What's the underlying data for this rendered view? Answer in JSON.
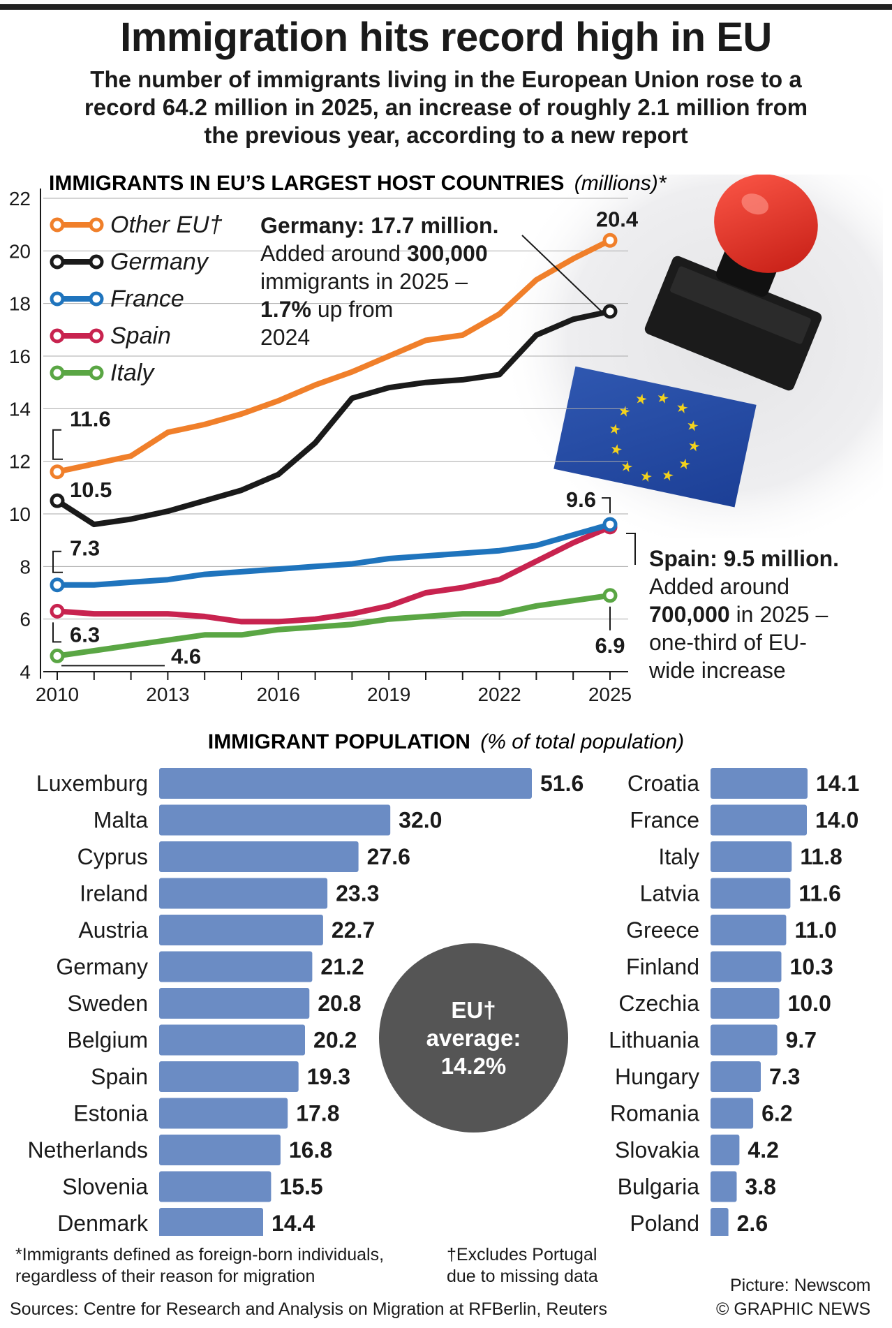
{
  "header": {
    "title": "Immigration hits record high in EU",
    "subtitle": "The number of immigrants living in the European Union rose to a record 64.2 million in 2025, an increase of roughly 2.1 million from the previous year, according to a new report"
  },
  "colors": {
    "other_eu": "#f07f2a",
    "germany": "#1a1a1a",
    "france": "#1f74bd",
    "spain": "#c8234f",
    "italy": "#5aa644",
    "bar": "#6b8cc4",
    "avg_circle": "#555555"
  },
  "annotations": {
    "germany": {
      "head": "Germany: 17.7 million.",
      "pre": "Added around ",
      "amount": "300,000",
      "mid": "immigrants in 2025 –",
      "pct": "1.7%",
      "post": " up from",
      "year": "2024"
    },
    "spain": {
      "head": "Spain: 9.5 million.",
      "l1": "Added around",
      "amount": "700,000",
      "l2": " in 2025 –",
      "l3": "one-third of EU-",
      "l4": "wide increase"
    }
  },
  "avg": {
    "l1": "EU†",
    "l2": "average:",
    "l3": "14.2%"
  },
  "picture": {
    "stamp_icon": "rubber-stamp-eu-flag-icon"
  },
  "footer": {
    "note1_l1": "*Immigrants defined as foreign-born individuals,",
    "note1_l2": "regardless of their reason for migration",
    "note2_l1": "†Excludes Portugal",
    "note2_l2": "due to missing data",
    "picture_credit": "Picture: Newscom",
    "sources": "Sources: Centre for Research and Analysis on Migration at RFBerlin, Reuters",
    "copyright": "© GRAPHIC NEWS"
  },
  "chart_data": [
    {
      "type": "line",
      "title": "IMMIGRANTS IN EU’S LARGEST HOST COUNTRIES",
      "units": "(millions)*",
      "xlabel": "",
      "ylabel": "",
      "x": [
        2010,
        2011,
        2012,
        2013,
        2014,
        2015,
        2016,
        2017,
        2018,
        2019,
        2020,
        2021,
        2022,
        2023,
        2024,
        2025
      ],
      "xticks": [
        "2010",
        "2013",
        "2016",
        "2019",
        "2022",
        "2025"
      ],
      "yticks": [
        "4",
        "6",
        "8",
        "10",
        "12",
        "14",
        "16",
        "18",
        "20",
        "22"
      ],
      "ylim": [
        4,
        22
      ],
      "series": [
        {
          "name": "Other EU†",
          "key": "other_eu",
          "values": [
            11.6,
            11.9,
            12.2,
            13.1,
            13.4,
            13.8,
            14.3,
            14.9,
            15.4,
            16.0,
            16.6,
            16.8,
            17.6,
            18.9,
            19.7,
            20.4
          ],
          "start_label": "11.6",
          "end_label": "20.4"
        },
        {
          "name": "Germany",
          "key": "germany",
          "values": [
            10.5,
            9.6,
            9.8,
            10.1,
            10.5,
            10.9,
            11.5,
            12.7,
            14.4,
            14.8,
            15.0,
            15.1,
            15.3,
            16.8,
            17.4,
            17.7
          ],
          "start_label": "10.5",
          "end_label": ""
        },
        {
          "name": "France",
          "key": "france",
          "values": [
            7.3,
            7.3,
            7.4,
            7.5,
            7.7,
            7.8,
            7.9,
            8.0,
            8.1,
            8.3,
            8.4,
            8.5,
            8.6,
            8.8,
            9.2,
            9.6
          ],
          "start_label": "7.3",
          "end_label": "9.6"
        },
        {
          "name": "Spain",
          "key": "spain",
          "values": [
            6.3,
            6.2,
            6.2,
            6.2,
            6.1,
            5.9,
            5.9,
            6.0,
            6.2,
            6.5,
            7.0,
            7.2,
            7.5,
            8.2,
            8.9,
            9.5
          ],
          "start_label": "6.3",
          "end_label": ""
        },
        {
          "name": "Italy",
          "key": "italy",
          "values": [
            4.6,
            4.8,
            5.0,
            5.2,
            5.4,
            5.4,
            5.6,
            5.7,
            5.8,
            6.0,
            6.1,
            6.2,
            6.2,
            6.5,
            6.7,
            6.9
          ],
          "start_label": "4.6",
          "end_label": "6.9"
        }
      ]
    },
    {
      "type": "bar",
      "orientation": "horizontal",
      "title": "IMMIGRANT POPULATION",
      "units": "(% of total population)",
      "categories": [
        "Luxemburg",
        "Malta",
        "Cyprus",
        "Ireland",
        "Austria",
        "Germany",
        "Sweden",
        "Belgium",
        "Spain",
        "Estonia",
        "Netherlands",
        "Slovenia",
        "Denmark",
        "Croatia",
        "France",
        "Italy",
        "Latvia",
        "Greece",
        "Finland",
        "Czechia",
        "Lithuania",
        "Hungary",
        "Romania",
        "Slovakia",
        "Bulgaria",
        "Poland"
      ],
      "values": [
        51.6,
        32.0,
        27.6,
        23.3,
        22.7,
        21.2,
        20.8,
        20.2,
        19.3,
        17.8,
        16.8,
        15.5,
        14.4,
        14.1,
        14.0,
        11.8,
        11.6,
        11.0,
        10.3,
        10.0,
        9.7,
        7.3,
        6.2,
        4.2,
        3.8,
        2.6
      ],
      "labels": [
        "51.6",
        "32.0",
        "27.6",
        "23.3",
        "22.7",
        "21.2",
        "20.8",
        "20.2",
        "19.3",
        "17.8",
        "16.8",
        "15.5",
        "14.4",
        "14.1",
        "14.0",
        "11.8",
        "11.6",
        "11.0",
        "10.3",
        "10.0",
        "9.7",
        "7.3",
        "6.2",
        "4.2",
        "3.8",
        "2.6"
      ],
      "xlim": [
        0,
        51.6
      ]
    }
  ]
}
